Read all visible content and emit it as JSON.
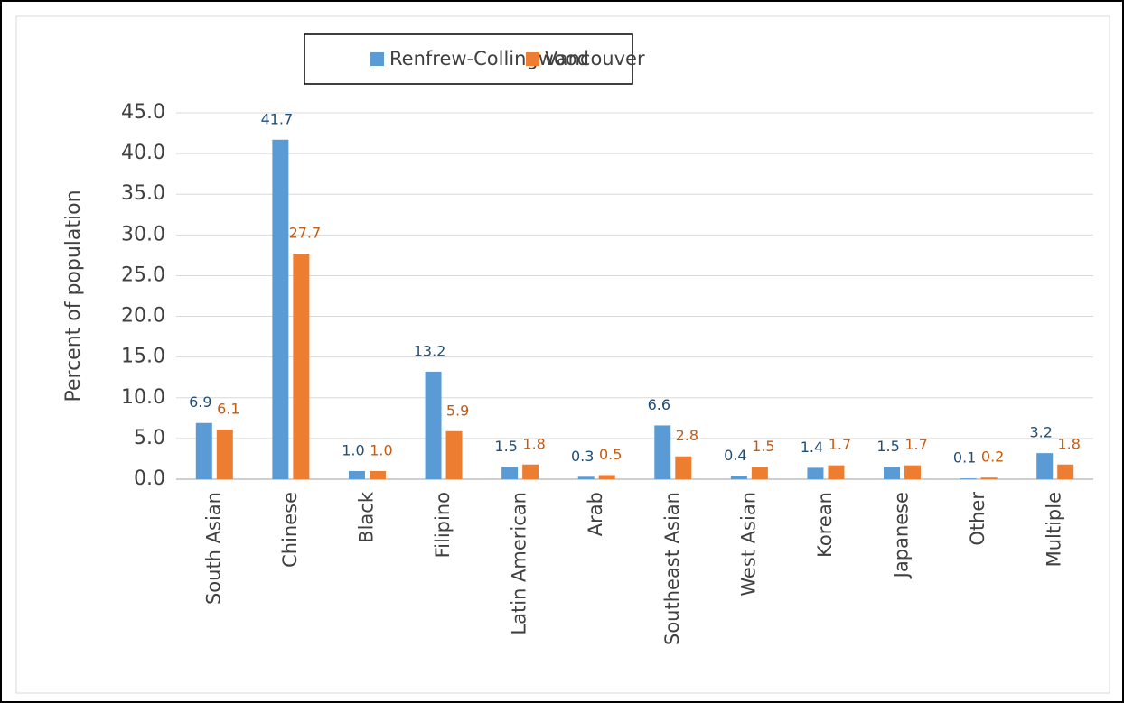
{
  "chart_data": {
    "type": "bar",
    "y_label": "Percent of population",
    "categories": [
      "South Asian",
      "Chinese",
      "Black",
      "Filipino",
      "Latin American",
      "Arab",
      "Southeast Asian",
      "West Asian",
      "Korean",
      "Japanese",
      "Other",
      "Multiple"
    ],
    "series": [
      {
        "name": "Renfrew-Collingwood",
        "color": "#5b9bd5",
        "label_color": "#1f4e79",
        "values": [
          6.9,
          41.7,
          1.0,
          13.2,
          1.5,
          0.3,
          6.6,
          0.4,
          1.4,
          1.5,
          0.1,
          3.2
        ],
        "value_labels": [
          "6.9",
          "41.7",
          "1.0",
          "13.2",
          "1.5",
          "0.3",
          "6.6",
          "0.4",
          "1.4",
          "1.5",
          "0.1",
          "3.2"
        ]
      },
      {
        "name": "Vancouver",
        "color": "#ed7d31",
        "label_color": "#c55a11",
        "values": [
          6.1,
          27.7,
          1.0,
          5.9,
          1.8,
          0.5,
          2.8,
          1.5,
          1.7,
          1.7,
          0.2,
          1.8
        ],
        "value_labels": [
          "6.1",
          "27.7",
          "1.0",
          "5.9",
          "1.8",
          "0.5",
          "2.8",
          "1.5",
          "1.7",
          "1.7",
          "0.2",
          "1.8"
        ]
      }
    ],
    "ylim": [
      0,
      45
    ],
    "yticks": [
      {
        "value": 0,
        "label": "0.0"
      },
      {
        "value": 5,
        "label": "5.0"
      },
      {
        "value": 10,
        "label": "10.0"
      },
      {
        "value": 15,
        "label": "15.0"
      },
      {
        "value": 20,
        "label": "20.0"
      },
      {
        "value": 25,
        "label": "25.0"
      },
      {
        "value": 30,
        "label": "30.0"
      },
      {
        "value": 35,
        "label": "35.0"
      },
      {
        "value": 40,
        "label": "40.0"
      },
      {
        "value": 45,
        "label": "45.0"
      }
    ],
    "grid": true,
    "legend": "top"
  }
}
